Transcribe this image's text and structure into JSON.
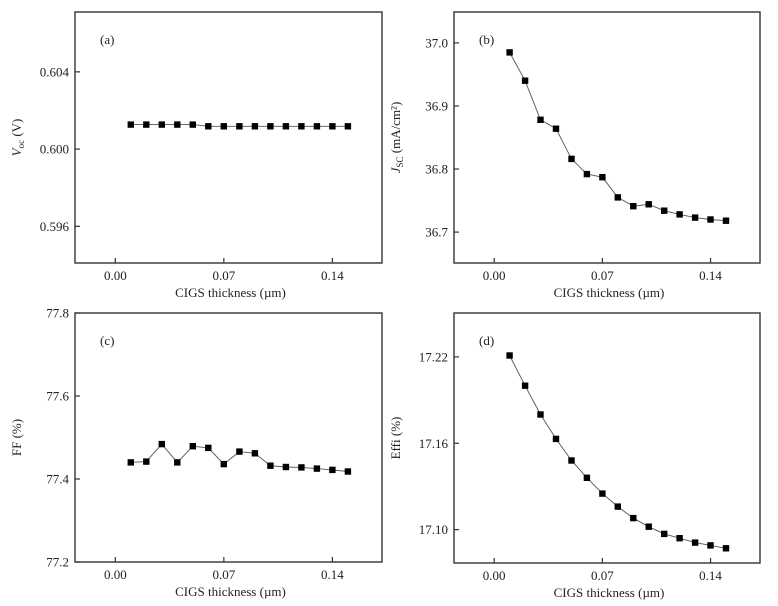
{
  "chart_data": [
    {
      "type": "line",
      "panel_label": "(a)",
      "xlabel": "CIGS thickness (µm)",
      "ylabel_main": "V",
      "ylabel_sub": "oc",
      "ylabel_unit": " (V)",
      "x": [
        0.01,
        0.02,
        0.03,
        0.04,
        0.05,
        0.06,
        0.07,
        0.08,
        0.09,
        0.1,
        0.11,
        0.12,
        0.13,
        0.14,
        0.15
      ],
      "series": [
        {
          "name": "Voc",
          "values": [
            0.60127,
            0.60127,
            0.60127,
            0.60127,
            0.60127,
            0.60118,
            0.60118,
            0.60118,
            0.60118,
            0.60118,
            0.60118,
            0.60118,
            0.60118,
            0.60118,
            0.60118
          ]
        }
      ],
      "xticks": [
        0.0,
        0.07,
        0.14
      ],
      "xtick_labels": [
        "0.00",
        "0.07",
        "0.14"
      ],
      "yticks": [
        0.596,
        0.6,
        0.604
      ],
      "ytick_labels": [
        "0.596",
        "0.600",
        "0.604"
      ],
      "xlim": [
        -0.026,
        0.172
      ],
      "ylim": [
        0.5941,
        0.6071
      ],
      "grid": false,
      "legend": "none"
    },
    {
      "type": "line",
      "panel_label": "(b)",
      "xlabel": "CIGS thickness (µm)",
      "ylabel_main": "J",
      "ylabel_sub": "SC",
      "ylabel_unit": " (mA/cm²)",
      "x": [
        0.01,
        0.02,
        0.03,
        0.04,
        0.05,
        0.06,
        0.07,
        0.08,
        0.09,
        0.1,
        0.11,
        0.12,
        0.13,
        0.14,
        0.15
      ],
      "series": [
        {
          "name": "Jsc",
          "values": [
            36.985,
            36.94,
            36.878,
            36.864,
            36.816,
            36.792,
            36.787,
            36.755,
            36.741,
            36.744,
            36.734,
            36.728,
            36.723,
            36.72,
            36.718
          ]
        }
      ],
      "xticks": [
        0.0,
        0.07,
        0.14
      ],
      "xtick_labels": [
        "0.00",
        "0.07",
        "0.14"
      ],
      "yticks": [
        36.7,
        36.8,
        36.9,
        37.0
      ],
      "ytick_labels": [
        "36.7",
        "36.8",
        "36.9",
        "37.0"
      ],
      "xlim": [
        -0.026,
        0.172
      ],
      "ylim": [
        36.651,
        37.049
      ],
      "grid": false,
      "legend": "none"
    },
    {
      "type": "line",
      "panel_label": "(c)",
      "xlabel": "CIGS thickness (µm)",
      "ylabel_main": "FF (%)",
      "ylabel_sub": "",
      "ylabel_unit": "",
      "x": [
        0.01,
        0.02,
        0.03,
        0.04,
        0.05,
        0.06,
        0.07,
        0.08,
        0.09,
        0.1,
        0.11,
        0.12,
        0.13,
        0.14,
        0.15
      ],
      "series": [
        {
          "name": "FF",
          "values": [
            77.44,
            77.442,
            77.484,
            77.44,
            77.479,
            77.475,
            77.436,
            77.466,
            77.462,
            77.432,
            77.429,
            77.428,
            77.425,
            77.422,
            77.418
          ]
        }
      ],
      "xticks": [
        0.0,
        0.07,
        0.14
      ],
      "xtick_labels": [
        "0.00",
        "0.07",
        "0.14"
      ],
      "yticks": [
        77.2,
        77.4,
        77.6,
        77.8
      ],
      "ytick_labels": [
        "77.2",
        "77.4",
        "77.6",
        "77.8"
      ],
      "xlim": [
        -0.026,
        0.172
      ],
      "ylim": [
        77.2,
        77.8
      ],
      "grid": false,
      "legend": "none"
    },
    {
      "type": "line",
      "panel_label": "(d)",
      "xlabel": "CIGS thickness (µm)",
      "ylabel_main": "Effi (%)",
      "ylabel_sub": "",
      "ylabel_unit": "",
      "x": [
        0.01,
        0.02,
        0.03,
        0.04,
        0.05,
        0.06,
        0.07,
        0.08,
        0.09,
        0.1,
        0.11,
        0.12,
        0.13,
        0.14,
        0.15
      ],
      "series": [
        {
          "name": "Efficiency",
          "values": [
            17.221,
            17.2,
            17.18,
            17.163,
            17.148,
            17.136,
            17.125,
            17.116,
            17.108,
            17.102,
            17.097,
            17.094,
            17.091,
            17.089,
            17.087
          ]
        }
      ],
      "xticks": [
        0.0,
        0.07,
        0.14
      ],
      "xtick_labels": [
        "0.00",
        "0.07",
        "0.14"
      ],
      "yticks": [
        17.1,
        17.16,
        17.22
      ],
      "ytick_labels": [
        "17.10",
        "17.16",
        "17.22"
      ],
      "xlim": [
        -0.026,
        0.172
      ],
      "ylim": [
        17.0768,
        17.2505
      ],
      "grid": false,
      "legend": "none"
    }
  ]
}
